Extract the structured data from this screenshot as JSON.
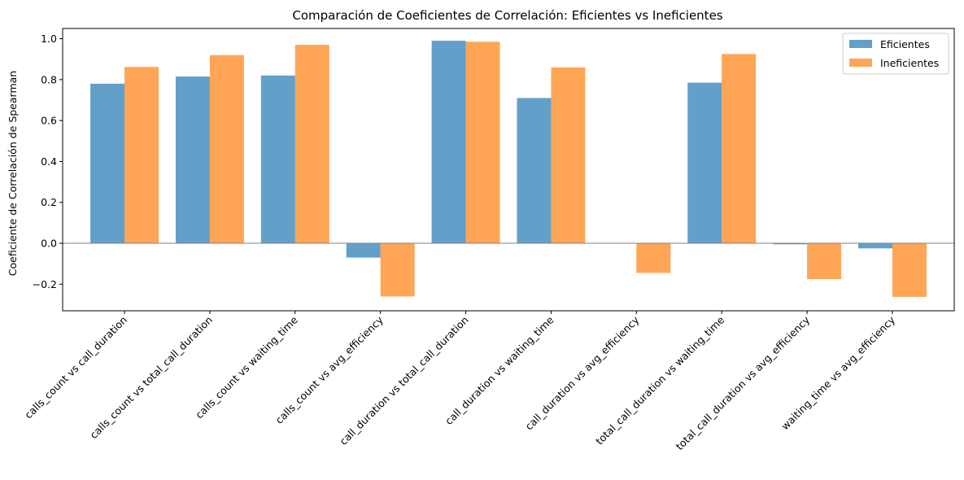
{
  "chart_data": {
    "type": "bar",
    "title": "Comparación de Coeficientes de Correlación: Eficientes vs Ineficientes",
    "xlabel": "",
    "ylabel": "Coeficiente de Correlación de Spearman",
    "ylim": [
      -0.33,
      1.05
    ],
    "yticks": [
      -0.2,
      0.0,
      0.2,
      0.4,
      0.6,
      0.8,
      1.0
    ],
    "ytick_labels": [
      "−0.2",
      "0.0",
      "0.2",
      "0.4",
      "0.6",
      "0.8",
      "1.0"
    ],
    "grid": false,
    "legend_position": "top-right",
    "zero_line": true,
    "categories": [
      "calls_count vs call_duration",
      "calls_count vs total_call_duration",
      "calls_count vs waiting_time",
      "calls_count vs avg_efficiency",
      "call_duration vs total_call_duration",
      "call_duration vs waiting_time",
      "call_duration vs avg_efficiency",
      "total_call_duration vs waiting_time",
      "total_call_duration vs avg_efficiency",
      "waiting_time vs avg_efficiency"
    ],
    "series": [
      {
        "name": "Eficientes",
        "color": "#1f77b4",
        "values": [
          0.78,
          0.815,
          0.82,
          -0.07,
          0.99,
          0.71,
          0.0,
          0.785,
          -0.005,
          -0.025
        ]
      },
      {
        "name": "Ineficientes",
        "color": "#ff7f0e",
        "values": [
          0.862,
          0.92,
          0.97,
          -0.26,
          0.985,
          0.86,
          -0.145,
          0.925,
          -0.175,
          -0.262
        ]
      }
    ]
  }
}
